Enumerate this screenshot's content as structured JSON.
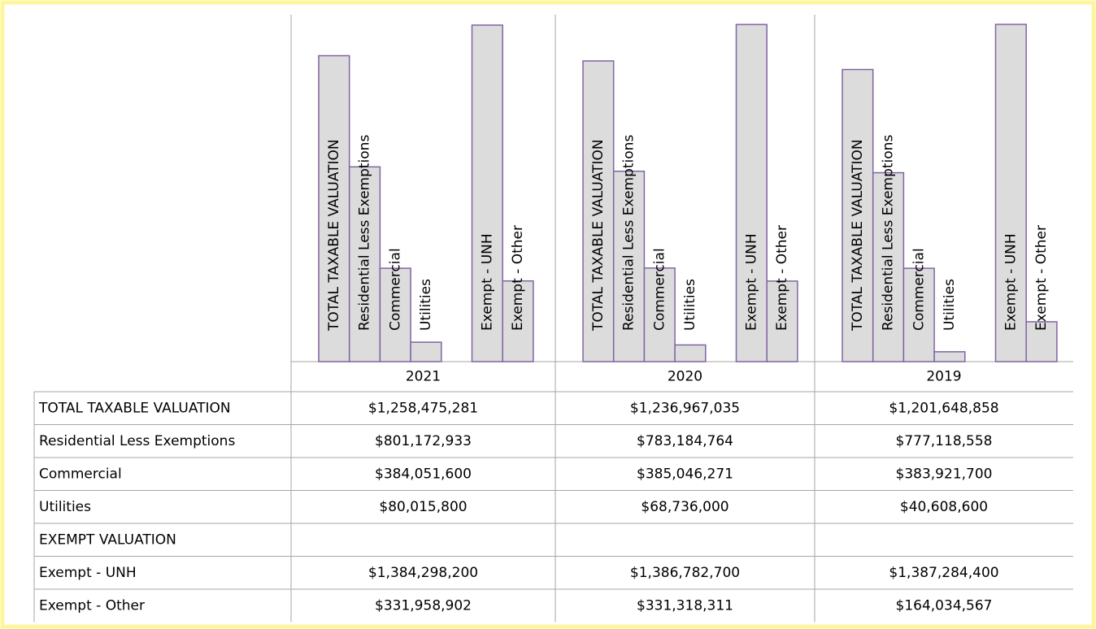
{
  "chart_data": {
    "type": "bar",
    "categories": [
      "TOTAL TAXABLE VALUATION",
      "Residential Less Exemptions",
      "Commercial",
      "Utilities",
      "EXEMPT VALUATION",
      "Exempt - UNH",
      "Exempt - Other"
    ],
    "bar_edge_color": "#8064a2",
    "series": [
      {
        "name": "2021",
        "color": "#dcdcdc",
        "values": [
          1258475281,
          801172933,
          384051600,
          80015800,
          null,
          1384298200,
          331958902
        ],
        "value_labels": [
          "$1,258,475,281",
          "$801,172,933",
          "$384,051,600",
          "$80,015,800",
          null,
          "$1,384,298,200",
          "$331,958,902"
        ]
      },
      {
        "name": "2020",
        "color": "#dcdcdc",
        "values": [
          1236967035,
          783184764,
          385046271,
          68736000,
          null,
          1386782700,
          331318311
        ],
        "value_labels": [
          "$1,236,967,035",
          "$783,184,764",
          "$385,046,271",
          "$68,736,000",
          null,
          "$1,386,782,700",
          "$331,318,311"
        ]
      },
      {
        "name": "2019",
        "color": "#dcdcdc",
        "values": [
          1201648858,
          777118558,
          383921700,
          40608600,
          null,
          1387284400,
          164034567
        ],
        "value_labels": [
          "$1,201,648,858",
          "$777,118,558",
          "$383,921,700",
          "$40,608,600",
          null,
          "$1,387,284,400",
          "$164,034,567"
        ]
      }
    ]
  }
}
